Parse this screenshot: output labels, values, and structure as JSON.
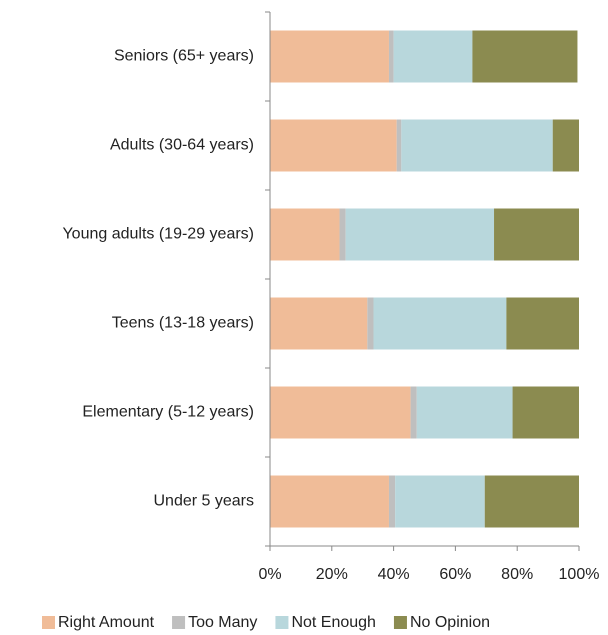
{
  "chart_data": {
    "type": "stacked-barh",
    "categories": [
      "Seniors (65+ years)",
      "Adults (30-64 years)",
      "Young adults (19-29 years)",
      "Teens (13-18 years)",
      "Elementary (5-12 years)",
      "Under 5 years"
    ],
    "series": [
      {
        "name": "Right Amount",
        "color": "#f0bc98",
        "values": [
          38.5,
          41,
          22.5,
          31.5,
          45.5,
          38.5
        ]
      },
      {
        "name": "Too Many",
        "color": "#bfbfbf",
        "values": [
          1.5,
          1.5,
          2,
          2,
          2,
          2
        ]
      },
      {
        "name": "Not Enough",
        "color": "#b8d7dc",
        "values": [
          25.5,
          49,
          48,
          43,
          31,
          29
        ]
      },
      {
        "name": "No Opinion",
        "color": "#8b8b50",
        "values": [
          34,
          8.5,
          27.5,
          23.5,
          21.5,
          30.5
        ]
      }
    ],
    "xlim": [
      0,
      100
    ],
    "xticks": [
      {
        "value": 0,
        "label": "0%"
      },
      {
        "value": 20,
        "label": "20%"
      },
      {
        "value": 40,
        "label": "40%"
      },
      {
        "value": 60,
        "label": "60%"
      },
      {
        "value": 80,
        "label": "80%"
      },
      {
        "value": 100,
        "label": "100%"
      }
    ],
    "legend": "bottom"
  }
}
